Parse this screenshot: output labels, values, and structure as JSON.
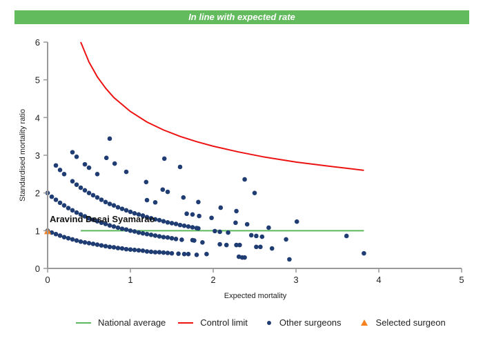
{
  "banner": {
    "text": "In line with expected rate"
  },
  "colors": {
    "banner": "#62bb5c",
    "national_average": "#5cb85c",
    "control_limit": "#ee1111",
    "other_surgeons": "#1f3d73",
    "selected_surgeon": "#f5821f"
  },
  "chart_data": {
    "type": "scatter",
    "xlabel": "Expected mortality",
    "ylabel": "Standardised mortality ratio",
    "xlim": [
      0,
      5
    ],
    "ylim": [
      0,
      6
    ],
    "xticks": [
      "0",
      "1",
      "2",
      "3",
      "4",
      "5"
    ],
    "yticks": [
      "0",
      "1",
      "2",
      "3",
      "4",
      "5",
      "6"
    ],
    "grid": false,
    "legend_position": "bottom",
    "series": [
      {
        "name": "National average",
        "type": "line",
        "points": [
          [
            0.4,
            1
          ],
          [
            3.82,
            1
          ]
        ]
      },
      {
        "name": "Control limit",
        "type": "line",
        "points": [
          [
            0.4,
            6.0
          ],
          [
            0.5,
            5.47
          ],
          [
            0.6,
            5.08
          ],
          [
            0.7,
            4.78
          ],
          [
            0.8,
            4.53
          ],
          [
            1.0,
            4.16
          ],
          [
            1.2,
            3.88
          ],
          [
            1.4,
            3.67
          ],
          [
            1.6,
            3.5
          ],
          [
            1.8,
            3.36
          ],
          [
            2.0,
            3.24
          ],
          [
            2.3,
            3.09
          ],
          [
            2.6,
            2.96
          ],
          [
            3.0,
            2.82
          ],
          [
            3.4,
            2.71
          ],
          [
            3.82,
            2.6
          ]
        ]
      },
      {
        "name": "Other surgeons",
        "type": "scatter",
        "points": [
          [
            0,
            1.0
          ],
          [
            0.05,
            0.95
          ],
          [
            0.1,
            0.91
          ],
          [
            0.15,
            0.87
          ],
          [
            0.2,
            0.83
          ],
          [
            0.25,
            0.8
          ],
          [
            0.3,
            0.77
          ],
          [
            0.35,
            0.74
          ],
          [
            0.4,
            0.71
          ],
          [
            0.45,
            0.69
          ],
          [
            0.5,
            0.67
          ],
          [
            0.55,
            0.65
          ],
          [
            0.6,
            0.63
          ],
          [
            0.65,
            0.61
          ],
          [
            0.7,
            0.59
          ],
          [
            0.75,
            0.57
          ],
          [
            0.8,
            0.56
          ],
          [
            0.85,
            0.54
          ],
          [
            0.9,
            0.53
          ],
          [
            0.95,
            0.51
          ],
          [
            1.0,
            0.5
          ],
          [
            1.05,
            0.49
          ],
          [
            1.1,
            0.48
          ],
          [
            1.15,
            0.47
          ],
          [
            1.2,
            0.45
          ],
          [
            1.25,
            0.44
          ],
          [
            1.3,
            0.43
          ],
          [
            1.35,
            0.43
          ],
          [
            1.4,
            0.42
          ],
          [
            1.45,
            0.41
          ],
          [
            1.5,
            0.4
          ],
          [
            1.58,
            0.39
          ],
          [
            1.65,
            0.38
          ],
          [
            1.7,
            0.38
          ],
          [
            1.8,
            0.36
          ],
          [
            1.92,
            0.38
          ],
          [
            0,
            2.0
          ],
          [
            0.05,
            1.9
          ],
          [
            0.1,
            1.82
          ],
          [
            0.15,
            1.74
          ],
          [
            0.2,
            1.67
          ],
          [
            0.25,
            1.6
          ],
          [
            0.3,
            1.54
          ],
          [
            0.35,
            1.48
          ],
          [
            0.4,
            1.43
          ],
          [
            0.45,
            1.38
          ],
          [
            0.5,
            1.33
          ],
          [
            0.55,
            1.29
          ],
          [
            0.6,
            1.25
          ],
          [
            0.65,
            1.21
          ],
          [
            0.7,
            1.18
          ],
          [
            0.75,
            1.14
          ],
          [
            0.8,
            1.11
          ],
          [
            0.85,
            1.08
          ],
          [
            0.9,
            1.05
          ],
          [
            0.95,
            1.03
          ],
          [
            1.0,
            1.0
          ],
          [
            1.05,
            0.98
          ],
          [
            1.1,
            0.95
          ],
          [
            1.15,
            0.93
          ],
          [
            1.2,
            0.91
          ],
          [
            1.25,
            0.89
          ],
          [
            1.3,
            0.87
          ],
          [
            1.35,
            0.85
          ],
          [
            1.4,
            0.83
          ],
          [
            1.45,
            0.82
          ],
          [
            1.5,
            0.8
          ],
          [
            1.55,
            0.78
          ],
          [
            1.62,
            0.76
          ],
          [
            1.75,
            0.75
          ],
          [
            1.77,
            0.74
          ],
          [
            1.87,
            0.69
          ],
          [
            0.1,
            2.73
          ],
          [
            0.15,
            2.61
          ],
          [
            0.2,
            2.5
          ],
          [
            0.3,
            2.31
          ],
          [
            0.35,
            2.22
          ],
          [
            0.4,
            2.14
          ],
          [
            0.45,
            2.07
          ],
          [
            0.5,
            2.0
          ],
          [
            0.55,
            1.94
          ],
          [
            0.6,
            1.88
          ],
          [
            0.65,
            1.82
          ],
          [
            0.7,
            1.76
          ],
          [
            0.75,
            1.71
          ],
          [
            0.8,
            1.67
          ],
          [
            0.85,
            1.62
          ],
          [
            0.9,
            1.58
          ],
          [
            0.95,
            1.54
          ],
          [
            1.0,
            1.5
          ],
          [
            1.05,
            1.46
          ],
          [
            1.1,
            1.43
          ],
          [
            1.15,
            1.4
          ],
          [
            1.2,
            1.36
          ],
          [
            1.25,
            1.33
          ],
          [
            1.3,
            1.3
          ],
          [
            1.35,
            1.28
          ],
          [
            1.4,
            1.25
          ],
          [
            1.45,
            1.22
          ],
          [
            1.5,
            1.2
          ],
          [
            1.55,
            1.18
          ],
          [
            1.6,
            1.15
          ],
          [
            1.65,
            1.13
          ],
          [
            1.7,
            1.11
          ],
          [
            1.75,
            1.09
          ],
          [
            1.8,
            1.07
          ],
          [
            1.82,
            1.06
          ],
          [
            0.3,
            3.08
          ],
          [
            0.35,
            2.96
          ],
          [
            0.45,
            2.76
          ],
          [
            0.5,
            2.67
          ],
          [
            0.6,
            2.5
          ],
          [
            0.75,
            3.44
          ],
          [
            0.71,
            2.93
          ],
          [
            1.41,
            2.91
          ],
          [
            1.6,
            2.69
          ],
          [
            0.95,
            2.56
          ],
          [
            1.19,
            2.29
          ],
          [
            0.81,
            2.78
          ],
          [
            1.39,
            2.09
          ],
          [
            1.45,
            2.03
          ],
          [
            1.64,
            1.88
          ],
          [
            1.82,
            1.76
          ],
          [
            2.38,
            2.36
          ],
          [
            2.5,
            2.0
          ],
          [
            2.09,
            1.61
          ],
          [
            2.28,
            1.52
          ],
          [
            2.41,
            1.17
          ],
          [
            2.27,
            1.21
          ],
          [
            2.67,
            1.08
          ],
          [
            3.01,
            1.24
          ],
          [
            1.98,
            1.34
          ],
          [
            2.08,
            0.97
          ],
          [
            2.02,
            0.99
          ],
          [
            2.18,
            0.95
          ],
          [
            2.46,
            0.88
          ],
          [
            2.52,
            0.86
          ],
          [
            2.59,
            0.84
          ],
          [
            2.88,
            0.77
          ],
          [
            2.08,
            0.64
          ],
          [
            2.16,
            0.62
          ],
          [
            2.28,
            0.62
          ],
          [
            2.32,
            0.62
          ],
          [
            2.52,
            0.57
          ],
          [
            2.57,
            0.57
          ],
          [
            2.71,
            0.53
          ],
          [
            2.31,
            0.31
          ],
          [
            2.35,
            0.29
          ],
          [
            2.38,
            0.29
          ],
          [
            2.92,
            0.24
          ],
          [
            3.61,
            0.86
          ],
          [
            3.82,
            0.4
          ],
          [
            1.68,
            1.45
          ],
          [
            1.75,
            1.43
          ],
          [
            1.83,
            1.39
          ],
          [
            1.2,
            1.81
          ],
          [
            1.3,
            1.75
          ]
        ]
      },
      {
        "name": "Selected surgeon",
        "type": "scatter",
        "marker": "triangle",
        "points": [
          [
            0,
            1
          ]
        ],
        "label": "Aravind Desai Syamarao"
      }
    ]
  }
}
